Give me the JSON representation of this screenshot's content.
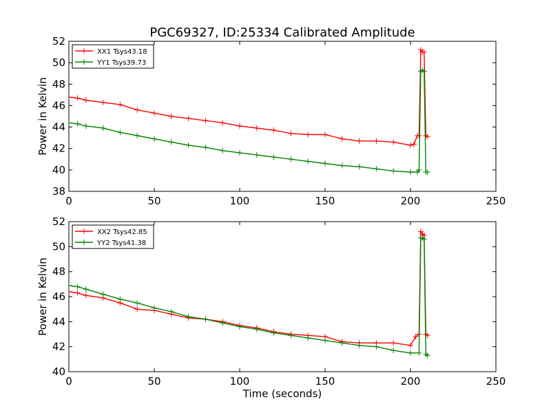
{
  "figure": {
    "title": "PGC69327, ID:25334 Calibrated Amplitude",
    "xlabel": "Time (seconds)"
  },
  "chart_data": [
    {
      "type": "line",
      "title": "PGC69327, ID:25334 Calibrated Amplitude",
      "xlabel": "",
      "ylabel": "Power in Kelvin",
      "xlim": [
        0,
        250
      ],
      "ylim": [
        38,
        52
      ],
      "xticks": [
        "0",
        "50",
        "100",
        "150",
        "200",
        "250"
      ],
      "yticks": [
        "38",
        "40",
        "42",
        "44",
        "46",
        "48",
        "50",
        "52"
      ],
      "grid": false,
      "legend_position": "top-left",
      "series": [
        {
          "name": "XX1 Tsys43.18",
          "color": "#ff0000",
          "x": [
            0,
            5,
            10,
            20,
            30,
            40,
            50,
            60,
            70,
            80,
            90,
            100,
            110,
            120,
            130,
            140,
            150,
            160,
            170,
            180,
            190,
            200,
            202,
            204,
            205,
            206,
            207,
            208,
            209,
            210
          ],
          "y": [
            46.8,
            46.7,
            46.5,
            46.3,
            46.1,
            45.6,
            45.3,
            45.0,
            44.8,
            44.6,
            44.4,
            44.1,
            43.9,
            43.7,
            43.4,
            43.3,
            43.3,
            42.9,
            42.7,
            42.7,
            42.6,
            42.3,
            42.4,
            43.2,
            43.2,
            51.2,
            51.0,
            51.0,
            43.2,
            43.1
          ]
        },
        {
          "name": "YY1 Tsys39.73",
          "color": "#008000",
          "x": [
            0,
            5,
            10,
            20,
            30,
            40,
            50,
            60,
            70,
            80,
            90,
            100,
            110,
            120,
            130,
            140,
            150,
            160,
            170,
            180,
            190,
            200,
            204,
            205,
            206,
            207,
            208,
            209,
            210
          ],
          "y": [
            44.4,
            44.3,
            44.1,
            43.9,
            43.5,
            43.2,
            42.9,
            42.6,
            42.3,
            42.1,
            41.8,
            41.6,
            41.4,
            41.2,
            41.0,
            40.8,
            40.6,
            40.4,
            40.3,
            40.1,
            39.9,
            39.8,
            39.8,
            40.0,
            49.2,
            49.3,
            49.2,
            39.8,
            39.8
          ]
        }
      ]
    },
    {
      "type": "line",
      "title": "",
      "xlabel": "Time (seconds)",
      "ylabel": "Power in Kelvin",
      "xlim": [
        0,
        250
      ],
      "ylim": [
        40,
        52
      ],
      "xticks": [
        "0",
        "50",
        "100",
        "150",
        "200",
        "250"
      ],
      "yticks": [
        "40",
        "42",
        "44",
        "46",
        "48",
        "50",
        "52"
      ],
      "grid": false,
      "legend_position": "top-left",
      "series": [
        {
          "name": "XX2 Tsys42.85",
          "color": "#ff0000",
          "x": [
            0,
            5,
            10,
            20,
            30,
            40,
            50,
            60,
            70,
            80,
            90,
            100,
            110,
            120,
            130,
            140,
            150,
            160,
            170,
            180,
            190,
            200,
            203,
            205,
            206,
            207,
            208,
            209,
            210
          ],
          "y": [
            46.4,
            46.3,
            46.1,
            45.9,
            45.5,
            45.0,
            44.9,
            44.6,
            44.3,
            44.2,
            44.0,
            43.7,
            43.5,
            43.2,
            43.0,
            42.9,
            42.8,
            42.4,
            42.3,
            42.3,
            42.3,
            42.1,
            42.8,
            43.0,
            51.2,
            51.0,
            50.9,
            43.0,
            42.9
          ]
        },
        {
          "name": "YY2 Tsys41.38",
          "color": "#008000",
          "x": [
            0,
            5,
            10,
            20,
            30,
            40,
            50,
            60,
            70,
            80,
            90,
            100,
            110,
            120,
            130,
            140,
            150,
            160,
            170,
            180,
            190,
            200,
            205,
            206,
            207,
            208,
            209,
            210
          ],
          "y": [
            46.9,
            46.8,
            46.6,
            46.2,
            45.8,
            45.5,
            45.1,
            44.8,
            44.4,
            44.2,
            43.9,
            43.6,
            43.4,
            43.1,
            42.9,
            42.7,
            42.5,
            42.3,
            42.1,
            42.0,
            41.7,
            41.5,
            41.5,
            50.7,
            50.7,
            50.6,
            41.4,
            41.3
          ]
        }
      ]
    }
  ]
}
